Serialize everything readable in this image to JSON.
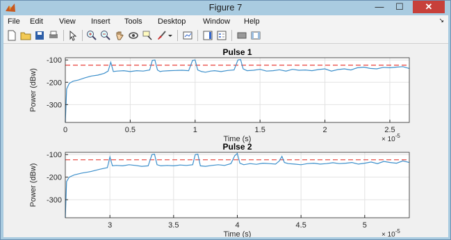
{
  "window": {
    "title": "Figure 7",
    "minimize": "—",
    "maximize": "☐",
    "close": "✕"
  },
  "menubar": {
    "items": [
      "File",
      "Edit",
      "View",
      "Insert",
      "Tools",
      "Desktop",
      "Window",
      "Help"
    ],
    "overflow": "↘"
  },
  "toolbar": {
    "buttons": [
      "new-figure-icon",
      "open-file-icon",
      "save-icon",
      "print-icon",
      "pointer-icon",
      "zoom-in-icon",
      "zoom-out-icon",
      "pan-hand-icon",
      "rotate-3d-icon",
      "data-cursor-icon",
      "brush-icon",
      "brush-dropdown-icon",
      "link-plot-icon",
      "colorbar-icon",
      "legend-icon",
      "hide-plot-tools-icon",
      "show-plot-tools-icon"
    ]
  },
  "colors": {
    "signal": "#3c8fcb",
    "threshold": "#e8403a",
    "close_button": "#c7403a",
    "window_frame": "#a9cbe0"
  },
  "chart_data": [
    {
      "type": "line",
      "title": "Pulse 1",
      "xlabel": "Time (s)",
      "ylabel": "Power (dBw)",
      "x_exponent": "× 10",
      "x_exponent_power": "-5",
      "xlim": [
        0,
        2.65
      ],
      "ylim": [
        -380,
        -90
      ],
      "xticks": [
        0,
        0.5,
        1,
        1.5,
        2,
        2.5
      ],
      "xtick_labels": [
        "0",
        "0.5",
        "1",
        "1.5",
        "2",
        "2.5"
      ],
      "yticks": [
        -100,
        -200,
        -300
      ],
      "ytick_labels": [
        "-100",
        "-200",
        "-300"
      ],
      "grid": true,
      "series": [
        {
          "style": "dashed",
          "x": [
            0,
            2.65
          ],
          "y": [
            -123,
            -123
          ]
        },
        {
          "style": "solid",
          "x": [
            0,
            0.01,
            0.03,
            0.06,
            0.1,
            0.15,
            0.2,
            0.25,
            0.3,
            0.33,
            0.35,
            0.37,
            0.4,
            0.45,
            0.5,
            0.55,
            0.6,
            0.65,
            0.67,
            0.69,
            0.71,
            0.73,
            0.75,
            0.8,
            0.85,
            0.9,
            0.95,
            0.98,
            1.0,
            1.02,
            1.05,
            1.08,
            1.12,
            1.15,
            1.2,
            1.25,
            1.3,
            1.33,
            1.35,
            1.37,
            1.4,
            1.45,
            1.5,
            1.55,
            1.6,
            1.65,
            1.7,
            1.75,
            1.8,
            1.85,
            1.9,
            1.95,
            2.0,
            2.05,
            2.1,
            2.15,
            2.2,
            2.25,
            2.3,
            2.35,
            2.4,
            2.45,
            2.5,
            2.55,
            2.6,
            2.65
          ],
          "y": [
            -380,
            -230,
            -205,
            -195,
            -190,
            -180,
            -172,
            -168,
            -160,
            -150,
            -110,
            -152,
            -150,
            -148,
            -152,
            -148,
            -150,
            -145,
            -102,
            -100,
            -145,
            -152,
            -150,
            -148,
            -147,
            -146,
            -148,
            -102,
            -100,
            -145,
            -152,
            -155,
            -150,
            -148,
            -152,
            -147,
            -145,
            -100,
            -98,
            -140,
            -148,
            -146,
            -142,
            -150,
            -148,
            -144,
            -150,
            -142,
            -146,
            -145,
            -148,
            -143,
            -140,
            -150,
            -143,
            -140,
            -145,
            -135,
            -132,
            -138,
            -140,
            -133,
            -135,
            -132,
            -130,
            -138
          ]
        }
      ]
    },
    {
      "type": "line",
      "title": "Pulse 2",
      "xlabel": "Time (s)",
      "ylabel": "Power (dBw)",
      "x_exponent": "× 10",
      "x_exponent_power": "-5",
      "xlim": [
        2.65,
        5.35
      ],
      "ylim": [
        -380,
        -90
      ],
      "xticks": [
        3,
        3.5,
        4,
        4.5,
        5
      ],
      "xtick_labels": [
        "3",
        "3.5",
        "4",
        "4.5",
        "5"
      ],
      "yticks": [
        -100,
        -200,
        -300
      ],
      "ytick_labels": [
        "-100",
        "-200",
        "-300"
      ],
      "grid": true,
      "series": [
        {
          "style": "dashed",
          "x": [
            2.65,
            5.35
          ],
          "y": [
            -123,
            -123
          ]
        },
        {
          "style": "solid",
          "x": [
            2.65,
            2.66,
            2.68,
            2.72,
            2.78,
            2.85,
            2.92,
            2.98,
            3.0,
            3.02,
            3.05,
            3.1,
            3.15,
            3.2,
            3.25,
            3.3,
            3.33,
            3.35,
            3.37,
            3.4,
            3.45,
            3.5,
            3.55,
            3.6,
            3.65,
            3.67,
            3.69,
            3.71,
            3.75,
            3.8,
            3.85,
            3.9,
            3.95,
            3.98,
            4.0,
            4.02,
            4.05,
            4.1,
            4.15,
            4.2,
            4.25,
            4.3,
            4.33,
            4.35,
            4.37,
            4.4,
            4.45,
            4.5,
            4.55,
            4.6,
            4.65,
            4.7,
            4.75,
            4.8,
            4.85,
            4.9,
            4.95,
            5.0,
            5.05,
            5.1,
            5.15,
            5.2,
            5.25,
            5.3,
            5.35
          ],
          "y": [
            -380,
            -220,
            -200,
            -190,
            -182,
            -175,
            -165,
            -158,
            -110,
            -150,
            -148,
            -150,
            -145,
            -148,
            -152,
            -150,
            -100,
            -98,
            -145,
            -150,
            -148,
            -150,
            -146,
            -148,
            -145,
            -100,
            -98,
            -150,
            -152,
            -148,
            -145,
            -148,
            -140,
            -105,
            -95,
            -138,
            -145,
            -140,
            -143,
            -138,
            -140,
            -142,
            -128,
            -108,
            -135,
            -140,
            -142,
            -145,
            -140,
            -138,
            -142,
            -140,
            -136,
            -140,
            -138,
            -135,
            -142,
            -138,
            -133,
            -140,
            -130,
            -135,
            -138,
            -128,
            -135
          ]
        }
      ]
    }
  ]
}
